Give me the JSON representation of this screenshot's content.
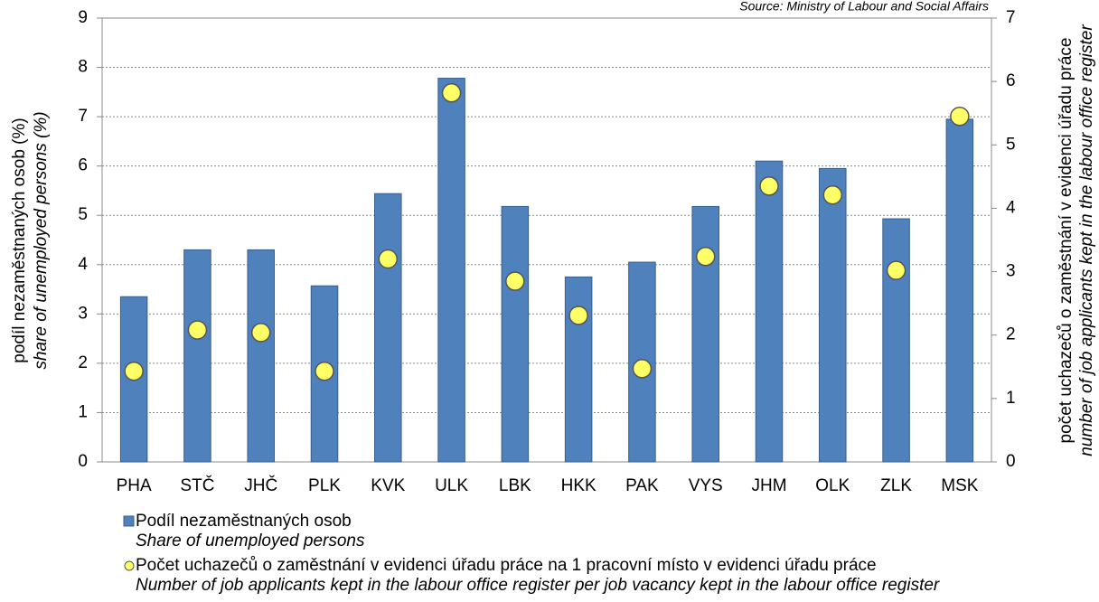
{
  "chart_data": {
    "type": "bar",
    "source": "Source: Ministry of Labour and Social Affairs",
    "ylabel": [
      "podíl nezaměstnaných osob (%)",
      "share of unemployed persons (%)"
    ],
    "y2label": [
      "počet uchazečů o zaměstnání v evidenci úřadu práce",
      "number of job applicants kept in the labour office register"
    ],
    "categories": [
      "PHA",
      "STČ",
      "JHČ",
      "PLK",
      "KVK",
      "ULK",
      "LBK",
      "HKK",
      "PAK",
      "VYS",
      "JHM",
      "OLK",
      "ZLK",
      "MSK"
    ],
    "series": [
      {
        "type": "bar",
        "name": "Podíl nezaměstnaných osob",
        "name_en": "Share of unemployed persons",
        "color": "#4f81bd",
        "values": [
          3.35,
          4.3,
          4.3,
          3.57,
          5.44,
          7.78,
          5.18,
          3.75,
          4.05,
          5.18,
          6.1,
          5.95,
          4.93,
          6.95
        ]
      },
      {
        "type": "scatter",
        "axis": "y2",
        "name": "Počet uchazečů o zaměstnání v evidenci úřadu práce na 1 pracovní místo v evidenci úřadu práce",
        "name_en": "Number of job applicants kept in the labour office register per job vacancy kept in the labour office register",
        "color": "#ffff66",
        "values": [
          1.43,
          2.08,
          2.04,
          1.43,
          3.2,
          5.82,
          2.85,
          2.31,
          1.47,
          3.24,
          4.35,
          4.21,
          3.02,
          5.45
        ]
      }
    ],
    "ylim": [
      0,
      9
    ],
    "yticks": [
      0,
      1,
      2,
      3,
      4,
      5,
      6,
      7,
      8,
      9
    ],
    "y2lim": [
      0,
      7
    ],
    "y2ticks": [
      0,
      1,
      2,
      3,
      4,
      5,
      6,
      7
    ],
    "grid": true
  }
}
